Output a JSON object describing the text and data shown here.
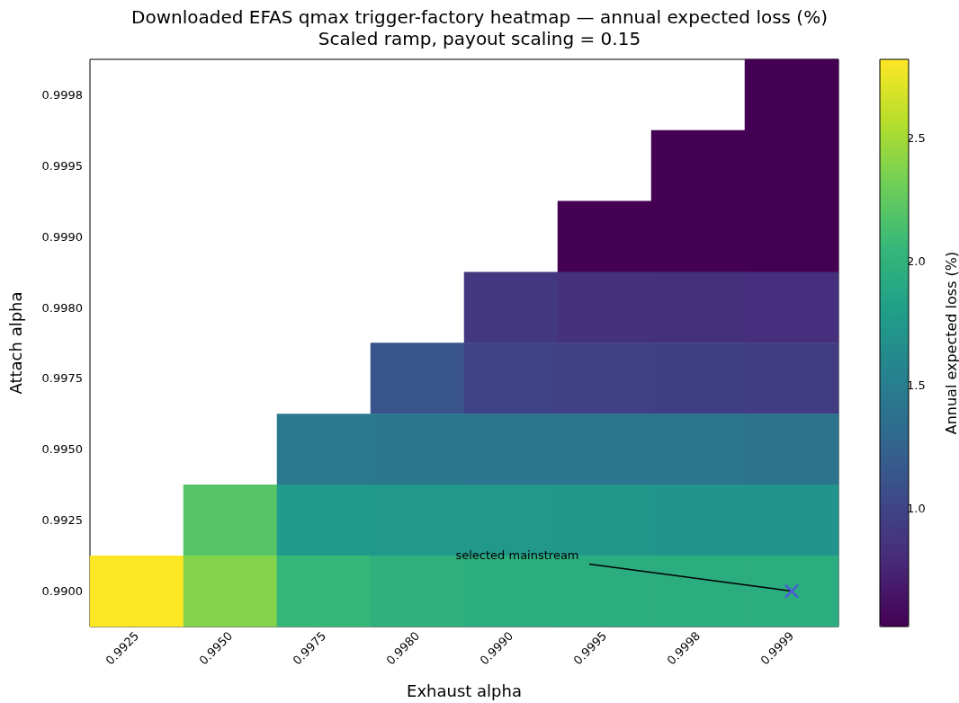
{
  "chart_data": {
    "type": "heatmap",
    "title": "Downloaded EFAS qmax trigger-factory heatmap — annual expected loss (%)",
    "subtitle": "Scaled ramp, payout scaling = 0.15",
    "xlabel": "Exhaust alpha",
    "ylabel": "Attach alpha",
    "clabel": "Annual expected loss (%)",
    "categories": [
      "0.9925",
      "0.9950",
      "0.9975",
      "0.9980",
      "0.9990",
      "0.9995",
      "0.9998",
      "0.9999"
    ],
    "y_categories": [
      "0.9998",
      "0.9995",
      "0.9990",
      "0.9980",
      "0.9975",
      "0.9950",
      "0.9925",
      "0.9900"
    ],
    "cells": [
      [
        null,
        null,
        null,
        null,
        null,
        null,
        null,
        0.52
      ],
      [
        null,
        null,
        null,
        null,
        null,
        null,
        0.52,
        0.52
      ],
      [
        null,
        null,
        null,
        null,
        null,
        0.52,
        0.52,
        0.52
      ],
      [
        null,
        null,
        null,
        null,
        0.9,
        0.85,
        0.84,
        0.83
      ],
      [
        null,
        null,
        null,
        1.12,
        0.98,
        0.96,
        0.95,
        0.94
      ],
      [
        null,
        null,
        1.45,
        1.43,
        1.42,
        1.41,
        1.41,
        1.4
      ],
      [
        null,
        2.2,
        1.76,
        1.75,
        1.74,
        1.73,
        1.72,
        1.72
      ],
      [
        2.82,
        2.38,
        2.05,
        1.98,
        1.96,
        1.95,
        1.95,
        1.95
      ]
    ],
    "clim": [
      0.52,
      2.82
    ],
    "cticks": [
      {
        "value": 1,
        "label": "1.0"
      },
      1.5,
      {
        "value": 2,
        "label": "2.0"
      },
      2.5
    ],
    "annotations": [
      {
        "text": "selected mainstream",
        "x": "0.9999",
        "y": "0.9900"
      }
    ]
  }
}
